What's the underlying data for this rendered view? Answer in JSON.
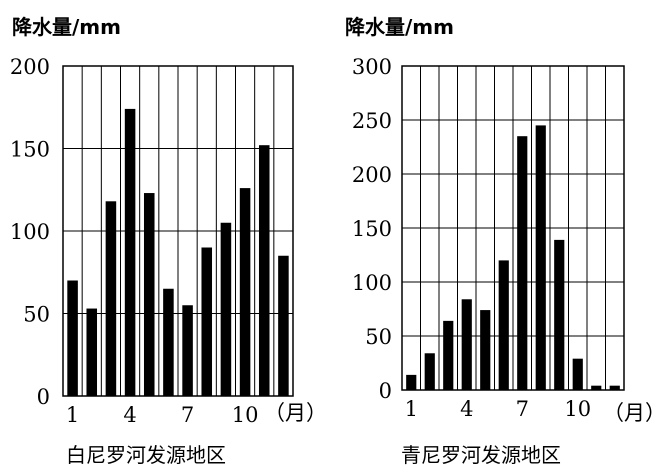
{
  "chart_data": [
    {
      "type": "bar",
      "title": "",
      "ylabel": "降水量/mm",
      "xlabel": "（月）",
      "caption": "白尼罗河发源地区",
      "ylim": [
        0,
        200
      ],
      "yticks": [
        0,
        50,
        100,
        150,
        200
      ],
      "xtick_labels": [
        "1",
        "4",
        "7",
        "10"
      ],
      "categories": [
        1,
        2,
        3,
        4,
        5,
        6,
        7,
        8,
        9,
        10,
        11,
        12
      ],
      "values": [
        70,
        53,
        118,
        174,
        123,
        65,
        55,
        90,
        105,
        126,
        152,
        85
      ],
      "grid": true
    },
    {
      "type": "bar",
      "title": "",
      "ylabel": "降水量/mm",
      "xlabel": "（月）",
      "caption": "青尼罗河发源地区",
      "ylim": [
        0,
        300
      ],
      "yticks": [
        0,
        50,
        100,
        150,
        200,
        250,
        300
      ],
      "xtick_labels": [
        "1",
        "4",
        "7",
        "10"
      ],
      "categories": [
        1,
        2,
        3,
        4,
        5,
        6,
        7,
        8,
        9,
        10,
        11,
        12
      ],
      "values": [
        14,
        34,
        64,
        84,
        74,
        120,
        235,
        245,
        139,
        29,
        4,
        4
      ],
      "grid": true
    }
  ]
}
